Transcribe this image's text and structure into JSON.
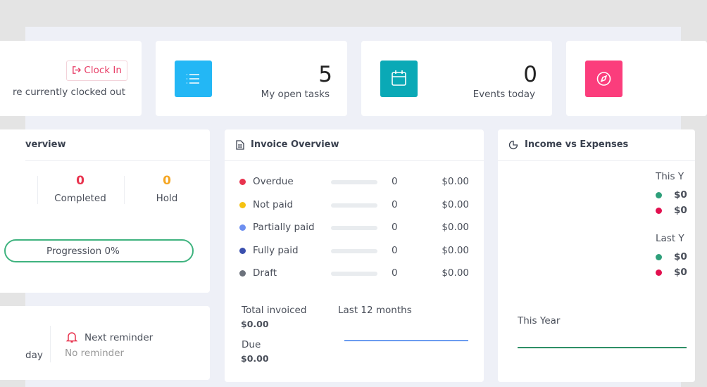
{
  "clock_card": {
    "button": "Clock In",
    "status": "re currently clocked out"
  },
  "stat_cards": [
    {
      "value": 5,
      "label": "My open tasks"
    },
    {
      "value": 0,
      "label": "Events today"
    }
  ],
  "project_overview": {
    "title": "verview",
    "stats": [
      {
        "value": 0,
        "label": "Completed"
      },
      {
        "value": 0,
        "label": "Hold"
      }
    ],
    "progress": "Progression 0%"
  },
  "invoice_overview": {
    "title": "Invoice Overview",
    "rows": [
      {
        "label": "Overdue",
        "count": 0,
        "amount": "$0.00"
      },
      {
        "label": "Not paid",
        "count": 0,
        "amount": "$0.00"
      },
      {
        "label": "Partially paid",
        "count": 0,
        "amount": "$0.00"
      },
      {
        "label": "Fully paid",
        "count": 0,
        "amount": "$0.00"
      },
      {
        "label": "Draft",
        "count": 0,
        "amount": "$0.00"
      }
    ],
    "total_label": "Total invoiced",
    "total": "$0.00",
    "period": "Last 12 months",
    "due_label": "Due",
    "due": "$0.00"
  },
  "income_expenses": {
    "title": "Income vs Expenses",
    "groups": [
      {
        "label": "This Y",
        "values": [
          "$0",
          "$0"
        ]
      },
      {
        "label": "Last Y",
        "values": [
          "$0",
          "$0"
        ]
      }
    ],
    "chart_label": "This Year"
  },
  "reminder_card": {
    "left": "day",
    "title": "Next reminder",
    "text": "No reminder"
  }
}
